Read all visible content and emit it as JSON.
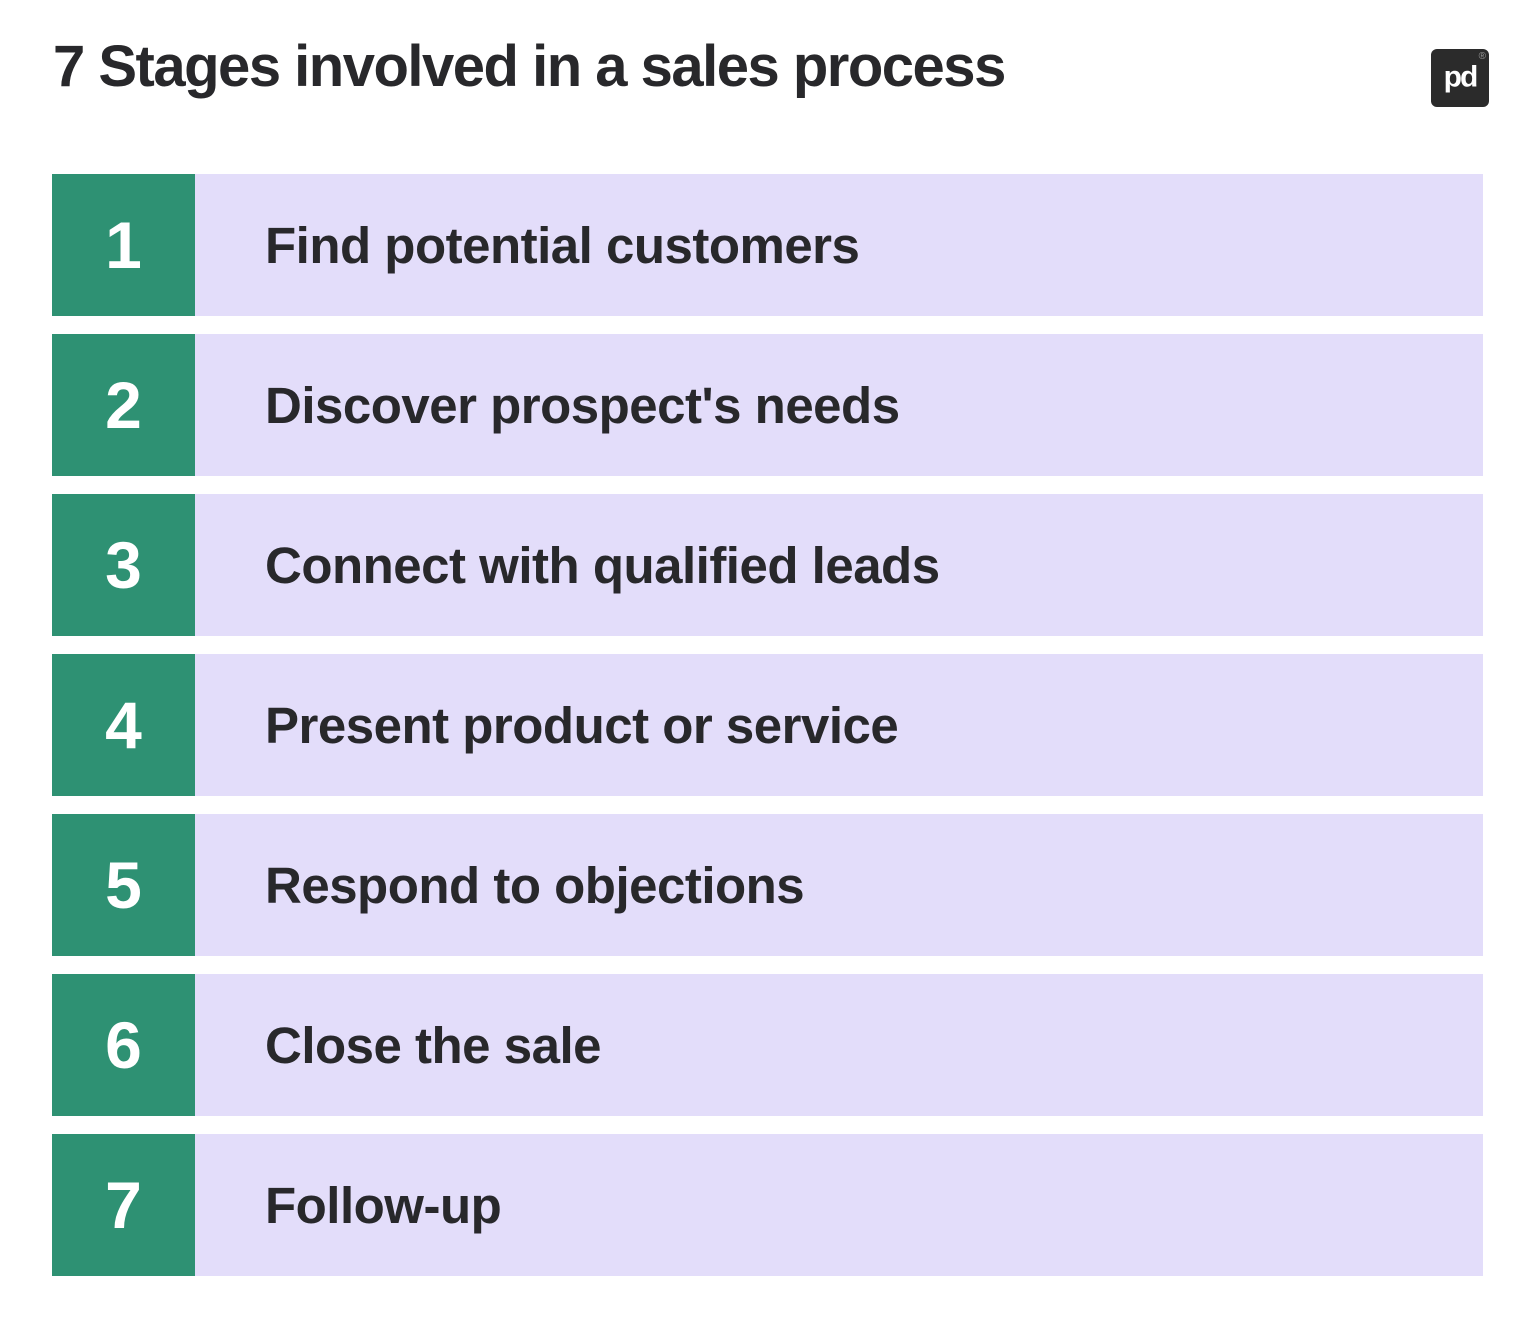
{
  "header": {
    "title": "7 Stages involved in a sales process",
    "logo_text": "pd",
    "registered_mark": "®"
  },
  "stages": [
    {
      "number": "1",
      "label": "Find potential customers"
    },
    {
      "number": "2",
      "label": "Discover prospect's needs"
    },
    {
      "number": "3",
      "label": "Connect with qualified leads"
    },
    {
      "number": "4",
      "label": "Present product or service"
    },
    {
      "number": "5",
      "label": "Respond to objections"
    },
    {
      "number": "6",
      "label": "Close the sale"
    },
    {
      "number": "7",
      "label": "Follow-up"
    }
  ],
  "colors": {
    "green": "#2E9173",
    "lavender": "#E3DDFA",
    "text": "#28282B",
    "logo_bg": "#2B2B2B",
    "background": "#FFFFFF"
  }
}
